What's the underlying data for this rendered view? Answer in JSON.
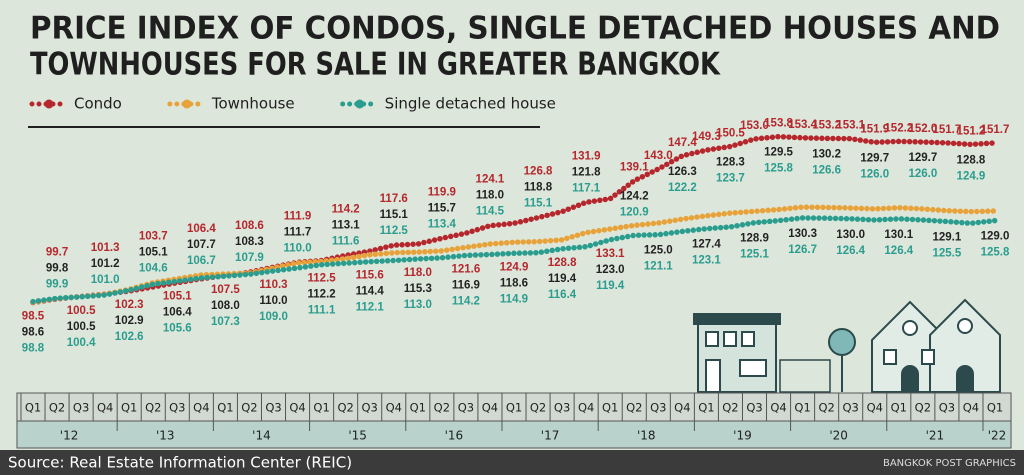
{
  "chart_data": {
    "type": "line",
    "title": [
      "PRICE INDEX OF CONDOS, SINGLE DETACHED HOUSES AND",
      "TOWNHOUSES  FOR SALE IN GREATER BANGKOK"
    ],
    "categories": [
      "Q1",
      "Q2",
      "Q3",
      "Q4",
      "Q1",
      "Q2",
      "Q3",
      "Q4",
      "Q1",
      "Q2",
      "Q3",
      "Q4",
      "Q1",
      "Q2",
      "Q3",
      "Q4",
      "Q1",
      "Q2",
      "Q3",
      "Q4",
      "Q1",
      "Q2",
      "Q3",
      "Q4",
      "Q1",
      "Q2",
      "Q3",
      "Q4",
      "Q1",
      "Q2",
      "Q3",
      "Q4",
      "Q1",
      "Q2",
      "Q3",
      "Q4",
      "Q1",
      "Q2",
      "Q3",
      "Q4",
      "Q1"
    ],
    "years": [
      "'12",
      "'13",
      "'14",
      "'15",
      "'16",
      "'17",
      "'18",
      "'19",
      "'20",
      "'21",
      "'22"
    ],
    "ylim": [
      90,
      166
    ],
    "series": [
      {
        "name": "Condo",
        "color": "#b5272d",
        "label_color": "#b5272d",
        "values": [
          98.5,
          99.7,
          100.5,
          101.3,
          102.3,
          103.7,
          105.1,
          106.4,
          107.5,
          108.6,
          110.3,
          111.9,
          112.5,
          114.2,
          115.6,
          117.6,
          118.0,
          119.9,
          121.6,
          124.1,
          124.9,
          126.8,
          128.8,
          131.9,
          133.1,
          139.1,
          143.0,
          147.4,
          149.3,
          150.5,
          153.0,
          153.8,
          153.4,
          153.2,
          153.1,
          151.9,
          152.2,
          152.0,
          151.7,
          151.2,
          151.7
        ],
        "value_labels": [
          "98.5",
          "99.7",
          "100.5",
          "101.3",
          "102.3",
          "103.7",
          "105.1",
          "106.4",
          "107.5",
          "108.6",
          "110.3",
          "111.9",
          "112.5",
          "114.2",
          "115.6",
          "117.6",
          "118.0",
          "119.9",
          "121.6",
          "124.1",
          "124.9",
          "126.8",
          "128.8",
          "131.9",
          "133.1",
          "139.1",
          "143.0",
          "147.4",
          "149.3",
          "150.5",
          "153.0",
          "153.8",
          "153.4",
          "153.2",
          "153.1",
          "151.9",
          "152.2",
          "152.0",
          "151.7",
          "151.2",
          "151.7"
        ]
      },
      {
        "name": "Townhouse",
        "color": "#e8a23a",
        "label_color": "#222222",
        "values": [
          98.6,
          99.8,
          100.5,
          101.2,
          102.9,
          105.1,
          106.4,
          107.7,
          108.0,
          108.3,
          110.0,
          111.7,
          112.2,
          113.1,
          114.4,
          115.1,
          115.3,
          115.7,
          116.9,
          118.0,
          118.6,
          118.8,
          119.4,
          121.8,
          123.0,
          124.2,
          125.0,
          126.3,
          127.4,
          128.3,
          128.9,
          129.5,
          130.3,
          130.2,
          130.0,
          129.7,
          130.1,
          129.7,
          129.1,
          128.8,
          129.0
        ],
        "value_labels": [
          "98.6",
          "99.8",
          "100.5",
          "101.2",
          "102.9",
          "105.1",
          "106.4",
          "107.7",
          "108.0",
          "108.3",
          "110.0",
          "111.7",
          "112.2",
          "113.1",
          "114.4",
          "115.1",
          "115.3",
          "115.7",
          "116.9",
          "118.0",
          "118.6",
          "118.8",
          "119.4",
          "121.8",
          "123.0",
          "124.2",
          "125.0",
          "126.3",
          "127.4",
          "128.3",
          "128.9",
          "129.5",
          "130.3",
          "130.2",
          "130.0",
          "129.7",
          "130.1",
          "129.7",
          "129.1",
          "128.8",
          "129.0"
        ]
      },
      {
        "name": "Single detached house",
        "color": "#2a9d8f",
        "label_color": "#2a9d8f",
        "values": [
          98.8,
          99.9,
          100.4,
          101.0,
          102.6,
          104.6,
          105.6,
          106.7,
          107.3,
          107.9,
          109.0,
          110.0,
          111.1,
          111.6,
          112.1,
          112.5,
          113.0,
          113.4,
          114.2,
          114.5,
          114.9,
          115.1,
          116.4,
          117.1,
          119.4,
          120.9,
          121.1,
          122.2,
          123.1,
          123.7,
          125.1,
          125.8,
          126.7,
          126.6,
          126.4,
          126.0,
          126.4,
          126.0,
          125.5,
          124.9,
          125.8
        ],
        "value_labels": [
          "98.8",
          "99.9",
          "100.4",
          "101.0",
          "102.6",
          "104.6",
          "105.6",
          "106.7",
          "107.3",
          "107.9",
          "109.0",
          "110.0",
          "111.1",
          "111.6",
          "112.1",
          "112.5",
          "113.0",
          "113.4",
          "114.2",
          "114.5",
          "114.9",
          "115.1",
          "116.4",
          "117.1",
          "119.4",
          "120.9",
          "121.1",
          "122.2",
          "123.1",
          "123.7",
          "125.1",
          "125.8",
          "126.7",
          "126.6",
          "126.4",
          "126.0",
          "126.4",
          "126.0",
          "125.5",
          "124.9",
          "125.8"
        ]
      }
    ],
    "source": "Source: Real Estate Information Center (REIC)",
    "credit": "BANGKOK POST GRAPHICS"
  }
}
